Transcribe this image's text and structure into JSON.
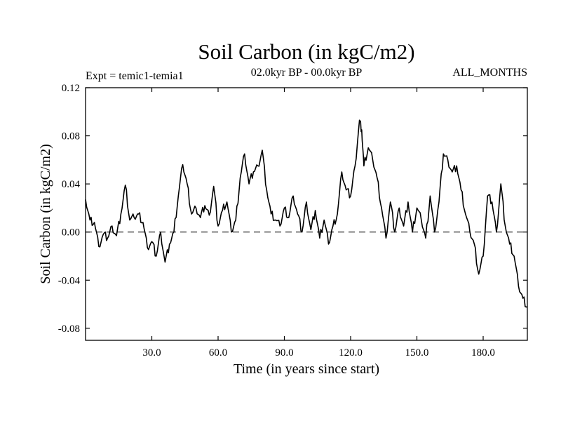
{
  "chart_data": {
    "type": "line",
    "title": "Soil Carbon (in kgC/m2)",
    "subtitle_left": "Expt = temic1-temia1",
    "subtitle_center": "02.0kyr BP - 00.0kyr BP",
    "subtitle_right": "ALL_MONTHS",
    "xlabel": "Time (in years since start)",
    "ylabel": "Soil Carbon (in kgC/m2)",
    "xlim": [
      0,
      200
    ],
    "ylim": [
      -0.09,
      0.12
    ],
    "xticks": [
      30,
      60,
      90,
      120,
      150,
      180
    ],
    "xtick_labels": [
      "30.0",
      "60.0",
      "90.0",
      "120.0",
      "150.0",
      "180.0"
    ],
    "yticks": [
      -0.08,
      -0.04,
      0.0,
      0.04,
      0.08,
      0.12
    ],
    "ytick_labels": [
      "-0.08",
      "-0.04",
      "0.00",
      "0.04",
      "0.08",
      "0.12"
    ],
    "reference_line": {
      "y": 0.0,
      "style": "dashed"
    },
    "series": [
      {
        "name": "temic1-temia1",
        "x": [
          0,
          2,
          4,
          6,
          8,
          10,
          12,
          14,
          16,
          18,
          20,
          22,
          24,
          26,
          28,
          30,
          32,
          34,
          36,
          38,
          40,
          42,
          44,
          46,
          48,
          50,
          52,
          54,
          56,
          58,
          60,
          62,
          64,
          66,
          68,
          70,
          72,
          74,
          76,
          78,
          80,
          82,
          84,
          86,
          88,
          90,
          92,
          94,
          96,
          98,
          100,
          102,
          104,
          106,
          108,
          110,
          112,
          114,
          116,
          118,
          120,
          122,
          124,
          125,
          126,
          128,
          130,
          132,
          134,
          136,
          138,
          140,
          142,
          144,
          146,
          148,
          150,
          152,
          154,
          156,
          158,
          160,
          162,
          164,
          166,
          168,
          170,
          172,
          174,
          176,
          178,
          180,
          182,
          184,
          186,
          188,
          190,
          192,
          194,
          196,
          198,
          200
        ],
        "values": [
          0.027,
          0.01,
          0.008,
          -0.012,
          -0.002,
          -0.005,
          0.005,
          -0.003,
          0.015,
          0.039,
          0.01,
          0.012,
          0.015,
          0.008,
          -0.013,
          -0.008,
          -0.02,
          0.0,
          -0.025,
          -0.01,
          0.0,
          0.03,
          0.056,
          0.04,
          0.015,
          0.02,
          0.012,
          0.022,
          0.014,
          0.038,
          0.005,
          0.018,
          0.025,
          0.0,
          0.01,
          0.045,
          0.065,
          0.04,
          0.05,
          0.055,
          0.068,
          0.035,
          0.015,
          0.01,
          0.005,
          0.02,
          0.012,
          0.03,
          0.015,
          0.0,
          0.025,
          0.002,
          0.018,
          -0.005,
          0.01,
          -0.01,
          0.005,
          0.015,
          0.05,
          0.035,
          0.03,
          0.055,
          0.093,
          0.085,
          0.055,
          0.07,
          0.06,
          0.045,
          0.02,
          -0.005,
          0.025,
          0.0,
          0.02,
          0.005,
          0.025,
          0.0,
          0.02,
          0.01,
          -0.005,
          0.03,
          0.0,
          0.025,
          0.065,
          0.06,
          0.05,
          0.055,
          0.035,
          0.015,
          0.0,
          -0.01,
          -0.035,
          -0.02,
          0.03,
          0.025,
          0.0,
          0.04,
          0.005,
          -0.01,
          -0.02,
          -0.045,
          -0.055,
          -0.062
        ]
      }
    ]
  }
}
